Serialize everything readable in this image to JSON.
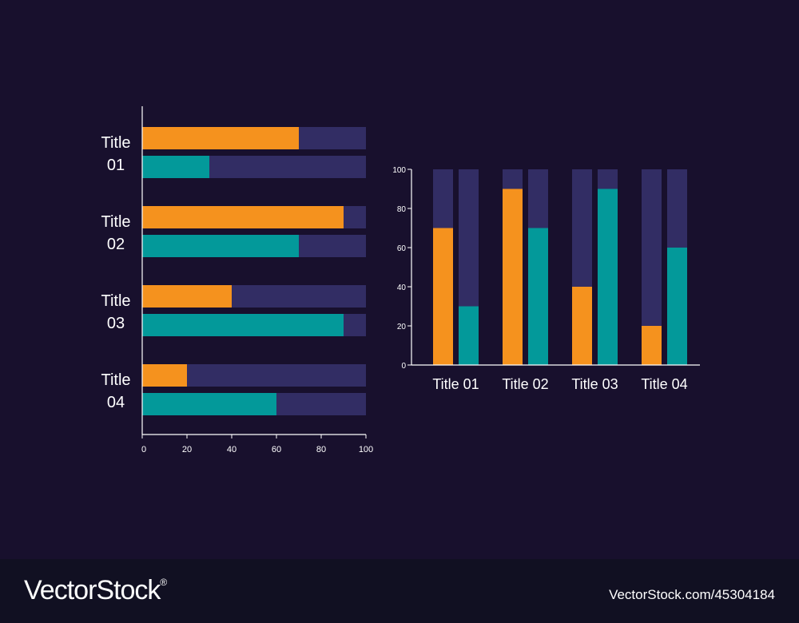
{
  "colors": {
    "background": "#18102d",
    "track": "#322d64",
    "orange": "#f5921e",
    "teal": "#03999a",
    "axis": "#ffffff",
    "text": "#ffffff"
  },
  "chart_data": [
    {
      "type": "bar",
      "orientation": "horizontal",
      "categories": [
        "Title 01",
        "Title 02",
        "Title 03",
        "Title 04"
      ],
      "category_labels": [
        [
          "Title",
          "01"
        ],
        [
          "Title",
          "02"
        ],
        [
          "Title",
          "03"
        ],
        [
          "Title",
          "04"
        ]
      ],
      "series": [
        {
          "values": [
            70,
            90,
            40,
            20
          ],
          "color": "#f5921e"
        },
        {
          "values": [
            30,
            70,
            90,
            60
          ],
          "color": "#03999a"
        }
      ],
      "xlim": [
        0,
        100
      ],
      "ticks": [
        0,
        20,
        40,
        60,
        80,
        100
      ],
      "track_max": 100
    },
    {
      "type": "bar",
      "orientation": "vertical",
      "categories": [
        "Title 01",
        "Title 02",
        "Title 03",
        "Title 04"
      ],
      "series": [
        {
          "values": [
            70,
            90,
            40,
            20
          ],
          "color": "#f5921e"
        },
        {
          "values": [
            30,
            70,
            90,
            60
          ],
          "color": "#03999a"
        }
      ],
      "ylim": [
        0,
        100
      ],
      "ticks": [
        0,
        20,
        40,
        60,
        80,
        100
      ],
      "track_max": 100
    }
  ],
  "footer": {
    "brand": "VectorStock",
    "registered": "®",
    "image_id": "VectorStock.com/45304184"
  }
}
